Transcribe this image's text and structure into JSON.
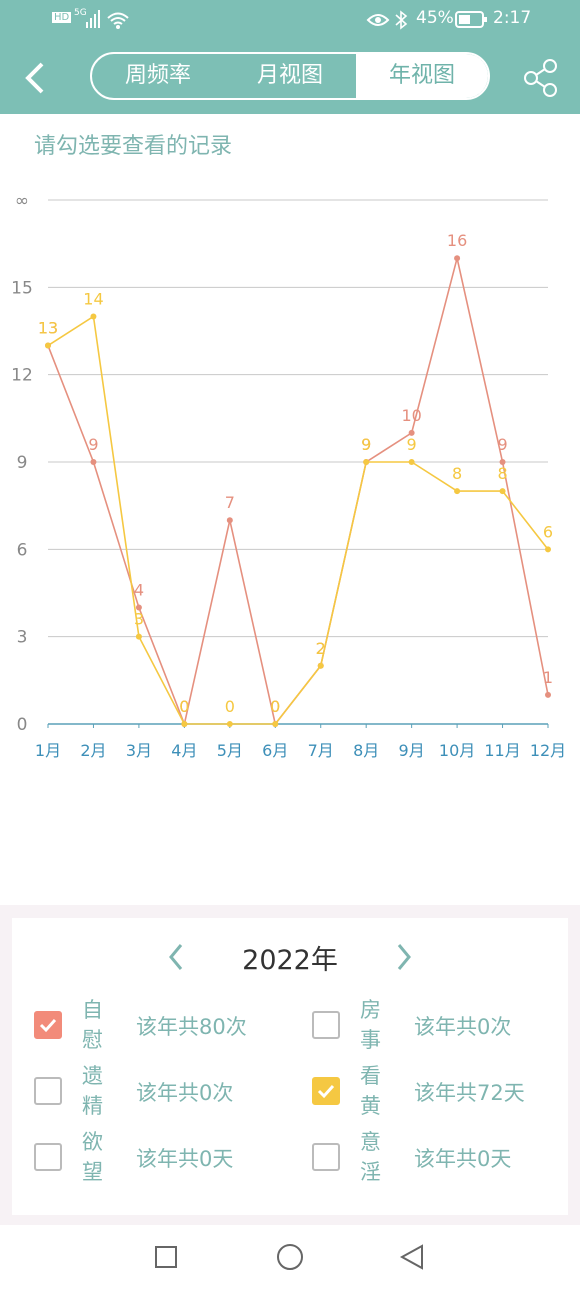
{
  "status_bar": {
    "network": "HD",
    "signal": "5G",
    "battery": "45%",
    "time": "2:17"
  },
  "header": {
    "tabs": [
      "周频率",
      "月视图",
      "年视图"
    ],
    "active_tab": 2
  },
  "prompt": "请勾选要查看的记录",
  "chart_data": {
    "type": "line",
    "categories": [
      "1月",
      "2月",
      "3月",
      "4月",
      "5月",
      "6月",
      "7月",
      "8月",
      "9月",
      "10月",
      "11月",
      "12月"
    ],
    "series": [
      {
        "color": "#e5907f",
        "values": [
          13,
          9,
          4,
          0,
          7,
          0,
          2,
          9,
          10,
          16,
          9,
          1
        ]
      },
      {
        "color": "#f5c842",
        "values": [
          13,
          14,
          3,
          0,
          0,
          0,
          2,
          9,
          9,
          8,
          8,
          6
        ]
      }
    ],
    "ylim": [
      0,
      18
    ],
    "yticks": [
      0,
      3,
      6,
      9,
      12,
      15,
      {
        "value": 18,
        "label": "∞"
      }
    ],
    "grid": true
  },
  "year_selector": {
    "year": "2022年"
  },
  "records": [
    {
      "label": "自慰",
      "summary": "该年共80次",
      "checked": true,
      "color": "#f28b7a"
    },
    {
      "label": "房事",
      "summary": "该年共0次",
      "checked": false
    },
    {
      "label": "遗精",
      "summary": "该年共0次",
      "checked": false
    },
    {
      "label": "看黄",
      "summary": "该年共72天",
      "checked": true,
      "color": "#f5c842"
    },
    {
      "label": "欲望",
      "summary": "该年共0天",
      "checked": false
    },
    {
      "label": "意淫",
      "summary": "该年共0天",
      "checked": false
    }
  ]
}
